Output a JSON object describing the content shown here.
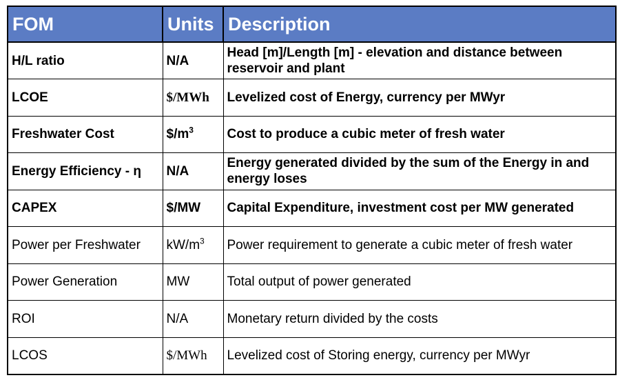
{
  "table": {
    "headers": [
      "FOM",
      "Units",
      "Description"
    ],
    "rows": [
      {
        "fom": "H/L ratio",
        "unit": "N/A",
        "unit_sup": "",
        "desc": "Head [m]/Length [m] - elevation and distance between reservoir and plant",
        "bold": true,
        "unit_serif": false
      },
      {
        "fom": "LCOE",
        "unit": "$/MWh",
        "unit_sup": "",
        "desc": "Levelized cost of Energy, currency per MWyr",
        "bold": true,
        "unit_serif": true
      },
      {
        "fom": "Freshwater Cost",
        "unit": "$/m",
        "unit_sup": "3",
        "desc": "Cost to produce a cubic meter of fresh water",
        "bold": true,
        "unit_serif": false
      },
      {
        "fom": "Energy Efficiency - η",
        "unit": "N/A",
        "unit_sup": "",
        "desc": "Energy generated divided by the sum of the Energy in and energy loses",
        "bold": true,
        "unit_serif": false
      },
      {
        "fom": "CAPEX",
        "unit": "$/MW",
        "unit_sup": "",
        "desc": "Capital Expenditure, investment cost per MW generated",
        "bold": true,
        "unit_serif": false
      },
      {
        "fom": "Power per Freshwater",
        "unit": "kW/m",
        "unit_sup": "3",
        "desc": "Power requirement to generate a cubic meter of fresh water",
        "bold": false,
        "unit_serif": false
      },
      {
        "fom": "Power Generation",
        "unit": "MW",
        "unit_sup": "",
        "desc": "Total output of power generated",
        "bold": false,
        "unit_serif": false
      },
      {
        "fom": "ROI",
        "unit": "N/A",
        "unit_sup": "",
        "desc": "Monetary return divided by the costs",
        "bold": false,
        "unit_serif": false
      },
      {
        "fom": "LCOS",
        "unit": "$/MWh",
        "unit_sup": "",
        "desc": "Levelized cost of Storing energy, currency per MWyr",
        "bold": false,
        "unit_serif": true
      }
    ]
  },
  "colors": {
    "header_bg": "#5b7cc4",
    "header_text": "#ffffff",
    "border": "#000000"
  }
}
